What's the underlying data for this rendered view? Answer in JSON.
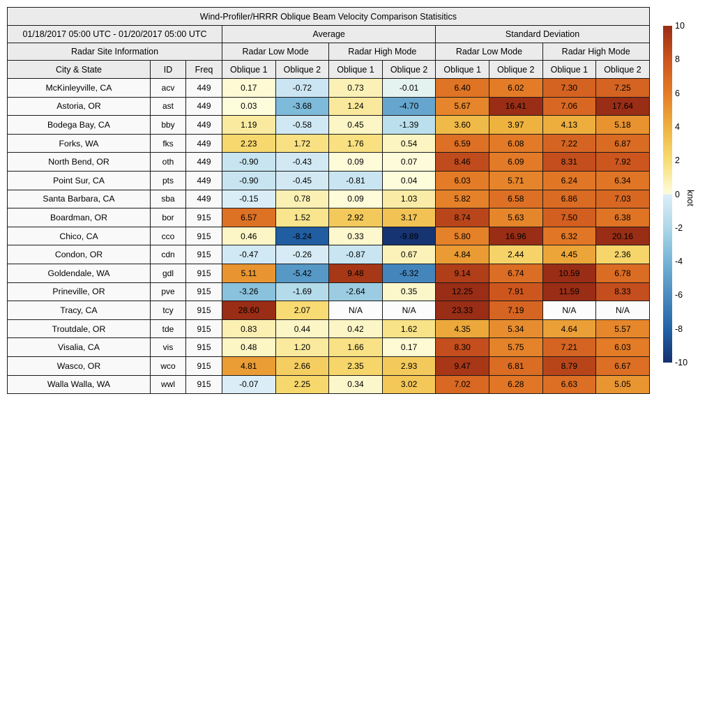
{
  "title": "Wind-Profiler/HRRR Oblique Beam Velocity Comparison Statisitics",
  "header": {
    "date_range": "01/18/2017 05:00 UTC - 01/20/2017 05:00 UTC",
    "group_average": "Average",
    "group_stddev": "Standard Deviation",
    "site_info": "Radar Site Information",
    "mode_labels": [
      "Radar Low Mode",
      "Radar High Mode",
      "Radar Low Mode",
      "Radar High Mode"
    ],
    "col_city": "City & State",
    "col_id": "ID",
    "col_freq": "Freq",
    "oblique_labels": [
      "Oblique 1",
      "Oblique 2",
      "Oblique 1",
      "Oblique 2",
      "Oblique 1",
      "Oblique 2",
      "Oblique 1",
      "Oblique 2"
    ]
  },
  "colorbar": {
    "label": "knot",
    "min": -10,
    "max": 10,
    "ticks": [
      10,
      8,
      6,
      4,
      2,
      0,
      -2,
      -4,
      -6,
      -8,
      -10
    ],
    "na_color": "#fcfcfc",
    "colormap_anchors": [
      {
        "value": -10,
        "color": "#15316f"
      },
      {
        "value": -8,
        "color": "#2263a8"
      },
      {
        "value": -6,
        "color": "#4a8cc0"
      },
      {
        "value": -4,
        "color": "#75b4d6"
      },
      {
        "value": -2,
        "color": "#add8e8"
      },
      {
        "value": -0.02,
        "color": "#dceef7"
      },
      {
        "value": 0.02,
        "color": "#fdfcdc"
      },
      {
        "value": 2,
        "color": "#f8dd74"
      },
      {
        "value": 4,
        "color": "#eeb13e"
      },
      {
        "value": 6,
        "color": "#e47c27"
      },
      {
        "value": 8,
        "color": "#cc541e"
      },
      {
        "value": 10,
        "color": "#992d15"
      }
    ]
  },
  "chart_data": {
    "type": "heatmap",
    "title": "Wind-Profiler/HRRR Oblique Beam Velocity Comparison Statisitics",
    "date_range": "01/18/2017 05:00 UTC - 01/20/2017 05:00 UTC",
    "unit": "knot",
    "color_range": [
      -10,
      10
    ],
    "columns": [
      "Average Radar Low Mode Oblique 1",
      "Average Radar Low Mode Oblique 2",
      "Average Radar High Mode Oblique 1",
      "Average Radar High Mode Oblique 2",
      "Standard Deviation Radar Low Mode Oblique 1",
      "Standard Deviation Radar Low Mode Oblique 2",
      "Standard Deviation Radar High Mode Oblique 1",
      "Standard Deviation Radar High Mode Oblique 2"
    ],
    "rows": [
      {
        "city": "McKinleyville, CA",
        "id": "acv",
        "freq": "449",
        "values": [
          "0.17",
          "-0.72",
          "0.73",
          "-0.01",
          "6.40",
          "6.02",
          "7.30",
          "7.25"
        ]
      },
      {
        "city": "Astoria, OR",
        "id": "ast",
        "freq": "449",
        "values": [
          "0.03",
          "-3.68",
          "1.24",
          "-4.70",
          "5.67",
          "16.41",
          "7.06",
          "17.64"
        ]
      },
      {
        "city": "Bodega Bay, CA",
        "id": "bby",
        "freq": "449",
        "values": [
          "1.19",
          "-0.58",
          "0.45",
          "-1.39",
          "3.60",
          "3.97",
          "4.13",
          "5.18"
        ]
      },
      {
        "city": "Forks, WA",
        "id": "fks",
        "freq": "449",
        "values": [
          "2.23",
          "1.72",
          "1.76",
          "0.54",
          "6.59",
          "6.08",
          "7.22",
          "6.87"
        ]
      },
      {
        "city": "North Bend, OR",
        "id": "oth",
        "freq": "449",
        "values": [
          "-0.90",
          "-0.43",
          "0.09",
          "0.07",
          "8.46",
          "6.09",
          "8.31",
          "7.92"
        ]
      },
      {
        "city": "Point Sur, CA",
        "id": "pts",
        "freq": "449",
        "values": [
          "-0.90",
          "-0.45",
          "-0.81",
          "0.04",
          "6.03",
          "5.71",
          "6.24",
          "6.34"
        ]
      },
      {
        "city": "Santa Barbara, CA",
        "id": "sba",
        "freq": "449",
        "values": [
          "-0.15",
          "0.78",
          "0.09",
          "1.03",
          "5.82",
          "6.58",
          "6.86",
          "7.03"
        ]
      },
      {
        "city": "Boardman, OR",
        "id": "bor",
        "freq": "915",
        "values": [
          "6.57",
          "1.52",
          "2.92",
          "3.17",
          "8.74",
          "5.63",
          "7.50",
          "6.38"
        ]
      },
      {
        "city": "Chico, CA",
        "id": "cco",
        "freq": "915",
        "values": [
          "0.46",
          "-8.24",
          "0.33",
          "-9.89",
          "5.80",
          "16.96",
          "6.32",
          "20.16"
        ]
      },
      {
        "city": "Condon, OR",
        "id": "cdn",
        "freq": "915",
        "values": [
          "-0.47",
          "-0.26",
          "-0.87",
          "0.67",
          "4.84",
          "2.44",
          "4.45",
          "2.36"
        ]
      },
      {
        "city": "Goldendale, WA",
        "id": "gdl",
        "freq": "915",
        "values": [
          "5.11",
          "-5.42",
          "9.48",
          "-6.32",
          "9.14",
          "6.74",
          "10.59",
          "6.78"
        ]
      },
      {
        "city": "Prineville, OR",
        "id": "pve",
        "freq": "915",
        "values": [
          "-3.26",
          "-1.69",
          "-2.64",
          "0.35",
          "12.25",
          "7.91",
          "11.59",
          "8.33"
        ]
      },
      {
        "city": "Tracy, CA",
        "id": "tcy",
        "freq": "915",
        "values": [
          "28.60",
          "2.07",
          "N/A",
          "N/A",
          "23.33",
          "7.19",
          "N/A",
          "N/A"
        ]
      },
      {
        "city": "Troutdale, OR",
        "id": "tde",
        "freq": "915",
        "values": [
          "0.83",
          "0.44",
          "0.42",
          "1.62",
          "4.35",
          "5.34",
          "4.64",
          "5.57"
        ]
      },
      {
        "city": "Visalia, CA",
        "id": "vis",
        "freq": "915",
        "values": [
          "0.48",
          "1.20",
          "1.66",
          "0.17",
          "8.30",
          "5.75",
          "7.21",
          "6.03"
        ]
      },
      {
        "city": "Wasco, OR",
        "id": "wco",
        "freq": "915",
        "values": [
          "4.81",
          "2.66",
          "2.35",
          "2.93",
          "9.47",
          "6.81",
          "8.79",
          "6.67"
        ]
      },
      {
        "city": "Walla Walla, WA",
        "id": "wwl",
        "freq": "915",
        "values": [
          "-0.07",
          "2.25",
          "0.34",
          "3.02",
          "7.02",
          "6.28",
          "6.63",
          "5.05"
        ]
      }
    ]
  }
}
